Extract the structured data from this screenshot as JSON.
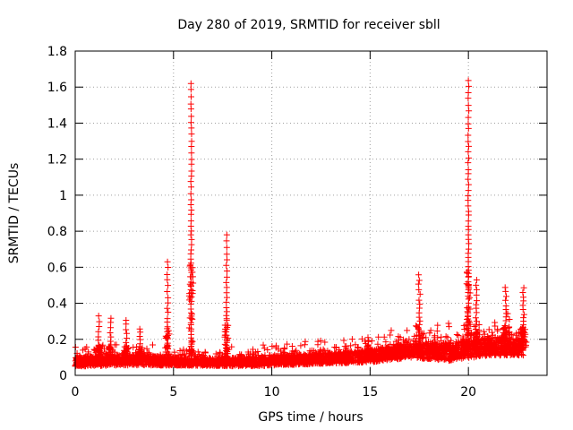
{
  "chart_data": {
    "type": "scatter",
    "title": "Day 280 of 2019, SRMTID for receiver sbll",
    "xlabel": "GPS time / hours",
    "ylabel": "SRMTID / TECUs",
    "xlim": [
      0,
      24
    ],
    "ylim": [
      0,
      1.8
    ],
    "grid": true,
    "marker": "+",
    "marker_color": "#ff0000",
    "x_ticks": [
      0,
      5,
      10,
      15,
      20
    ],
    "x_tick_labels": [
      "0",
      "5",
      "10",
      "15",
      "20"
    ],
    "y_ticks": [
      0,
      0.2,
      0.4,
      0.6,
      0.8,
      1.0,
      1.2,
      1.4,
      1.6,
      1.8
    ],
    "y_tick_labels": [
      "0",
      "0.2",
      "0.4",
      "0.6",
      "0.8",
      "1",
      "1.2",
      "1.4",
      "1.6",
      "1.8"
    ],
    "series": [
      {
        "name": "SRMTID",
        "background_points_per_hour": 160,
        "baseline_segments": [
          {
            "x": 0.0,
            "base": 0.07,
            "spread": 0.05
          },
          {
            "x": 3.0,
            "base": 0.08,
            "spread": 0.06
          },
          {
            "x": 6.0,
            "base": 0.07,
            "spread": 0.04
          },
          {
            "x": 9.0,
            "base": 0.07,
            "spread": 0.05
          },
          {
            "x": 13.0,
            "base": 0.09,
            "spread": 0.06
          },
          {
            "x": 15.0,
            "base": 0.1,
            "spread": 0.07
          },
          {
            "x": 17.0,
            "base": 0.13,
            "spread": 0.08
          },
          {
            "x": 19.0,
            "base": 0.12,
            "spread": 0.1
          },
          {
            "x": 21.0,
            "base": 0.15,
            "spread": 0.1
          },
          {
            "x": 22.8,
            "base": 0.15,
            "spread": 0.1
          }
        ],
        "bursts": [
          {
            "x": 1.2,
            "peak": 0.33,
            "width": 0.12
          },
          {
            "x": 1.8,
            "peak": 0.32,
            "width": 0.1
          },
          {
            "x": 2.6,
            "peak": 0.31,
            "width": 0.12
          },
          {
            "x": 3.3,
            "peak": 0.26,
            "width": 0.08
          },
          {
            "x": 4.7,
            "peak": 0.63,
            "width": 0.12
          },
          {
            "x": 5.9,
            "peak": 1.62,
            "width": 0.1
          },
          {
            "x": 7.7,
            "peak": 0.78,
            "width": 0.1
          },
          {
            "x": 14.9,
            "peak": 0.21,
            "width": 0.1
          },
          {
            "x": 17.5,
            "peak": 0.56,
            "width": 0.2
          },
          {
            "x": 18.3,
            "peak": 0.22,
            "width": 0.15
          },
          {
            "x": 20.0,
            "peak": 1.64,
            "width": 0.1
          },
          {
            "x": 20.4,
            "peak": 0.53,
            "width": 0.15
          },
          {
            "x": 21.0,
            "peak": 0.22,
            "width": 0.2
          },
          {
            "x": 21.9,
            "peak": 0.49,
            "width": 0.2
          },
          {
            "x": 22.8,
            "peak": 0.49,
            "width": 0.15
          }
        ]
      }
    ]
  }
}
